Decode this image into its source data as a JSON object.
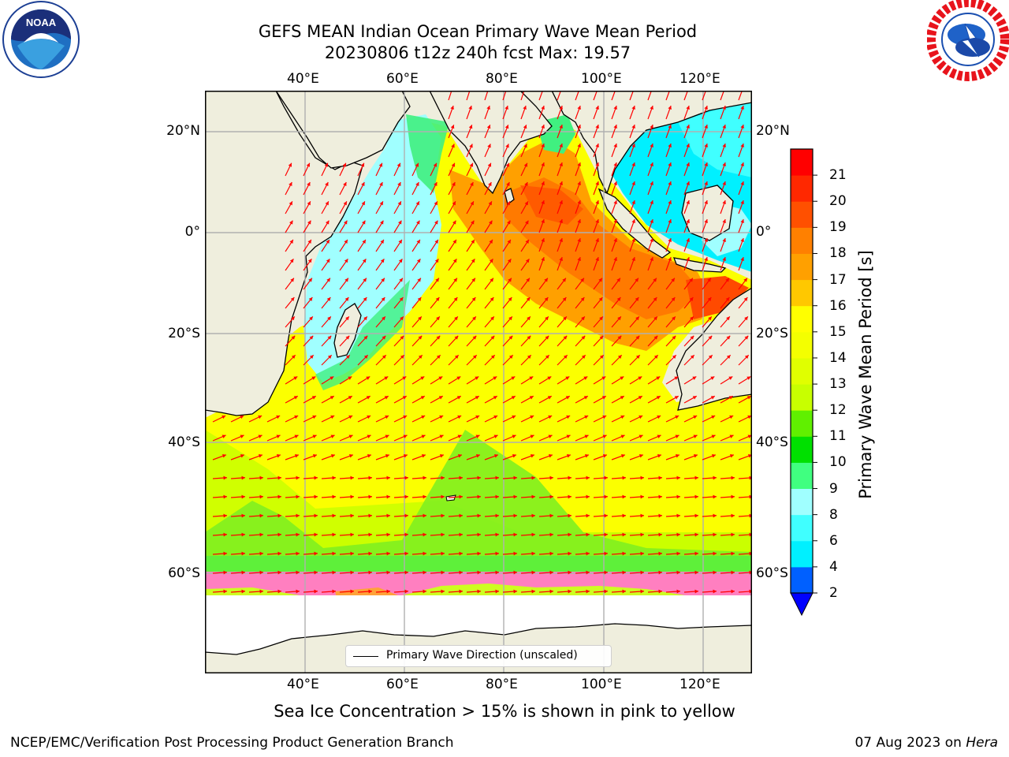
{
  "header": {
    "title_line1": "GEFS MEAN Indian Ocean Primary Wave Mean Period",
    "title_line2": "20230806 t12z 240h fcst   Max: 19.57"
  },
  "logos": {
    "left": "noaa-logo",
    "right": "nws-logo"
  },
  "map": {
    "lon_labels": [
      "40°E",
      "60°E",
      "80°E",
      "100°E",
      "120°E"
    ],
    "lat_labels": [
      "20°N",
      "0°",
      "20°S",
      "40°S",
      "60°S"
    ],
    "legend_label": "Primary Wave Direction (unscaled)",
    "colors": {
      "land": "#efeedd",
      "ice_free_edge": "#ffffff",
      "arrow": "#ff0000",
      "grid": "#b0b0b0"
    }
  },
  "colorbar": {
    "title": "Primary Wave Mean Period [s]",
    "tick_labels": [
      "2",
      "4",
      "6",
      "8",
      "9",
      "10",
      "11",
      "12",
      "13",
      "14",
      "15",
      "16",
      "17",
      "18",
      "19",
      "20",
      "21"
    ],
    "colors": [
      "#0060ff",
      "#00f0ff",
      "#40ffff",
      "#a0ffff",
      "#40ff80",
      "#00e000",
      "#60f000",
      "#c8ff00",
      "#e0ff00",
      "#f4ff00",
      "#ffff00",
      "#ffc800",
      "#ffa000",
      "#ff8000",
      "#ff5000",
      "#ff2800",
      "#ff0000"
    ],
    "under_color": "#0000ff"
  },
  "footer": {
    "note": "Sea Ice Concentration > 15% is shown in pink to yellow",
    "credit": "NCEP/EMC/Verification Post Processing Product Generation Branch",
    "date": "07 Aug 2023 on ",
    "machine": "Hera"
  }
}
